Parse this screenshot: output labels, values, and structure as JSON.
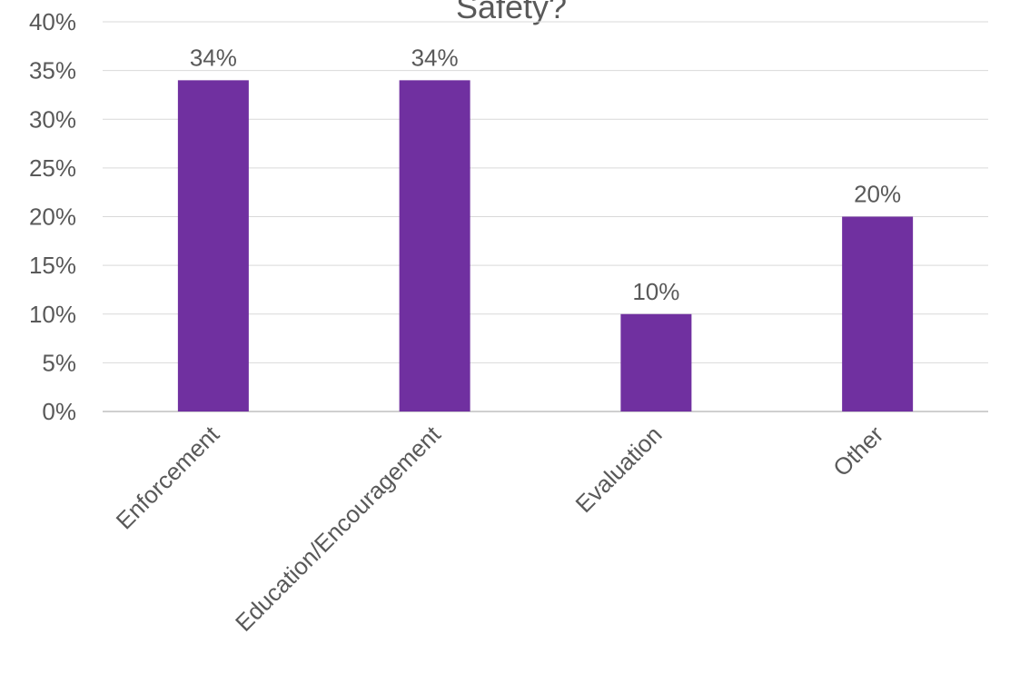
{
  "chart_data": {
    "type": "bar",
    "title": "Safety?",
    "xlabel": "",
    "ylabel": "",
    "categories": [
      "Enforcement",
      "Education/Encouragement",
      "Evaluation",
      "Other"
    ],
    "values": [
      34,
      34,
      10,
      20
    ],
    "value_labels": [
      "34%",
      "34%",
      "10%",
      "20%"
    ],
    "ylim": [
      0,
      40
    ],
    "y_ticks": [
      0,
      5,
      10,
      15,
      20,
      25,
      30,
      35,
      40
    ],
    "y_tick_labels": [
      "0%",
      "5%",
      "10%",
      "15%",
      "20%",
      "25%",
      "30%",
      "35%",
      "40%"
    ],
    "grid": true,
    "legend": "none",
    "colors": {
      "bar": "#7030A0",
      "text": "#595959",
      "grid": "#D9D9D9",
      "axis": "#BFBFBF"
    }
  }
}
